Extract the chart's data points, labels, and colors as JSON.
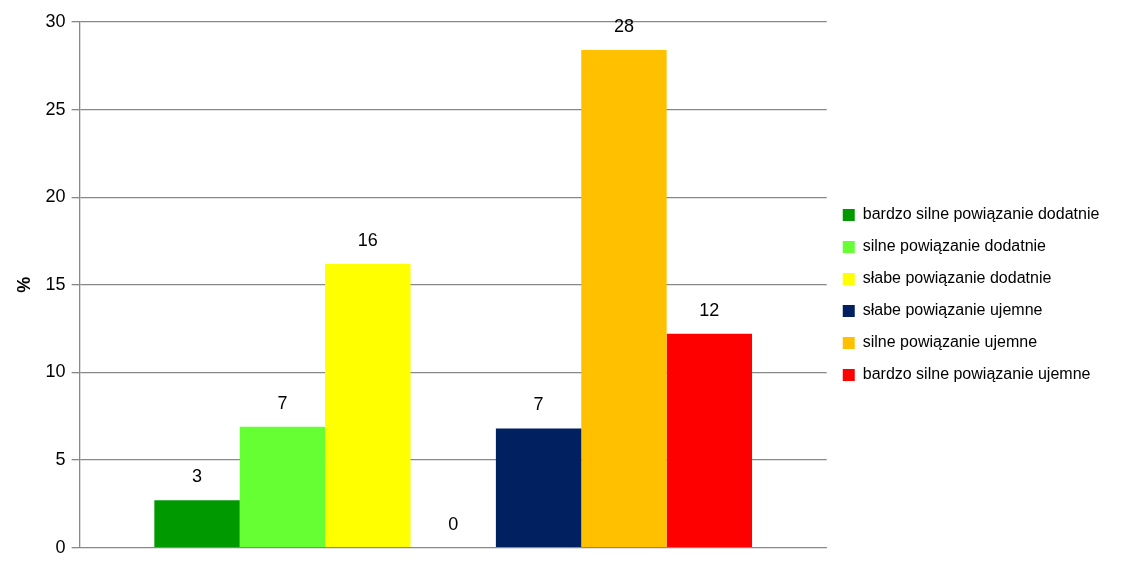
{
  "chart_data": {
    "type": "bar",
    "ylabel": "%",
    "categories": [
      null
    ],
    "series": [
      {
        "name": "bardzo silne powiązanie dodatnie",
        "color": "#009900",
        "values": [
          2.7
        ],
        "value_labels": [
          "3"
        ]
      },
      {
        "name": "silne powiązanie dodatnie",
        "color": "#66ff33",
        "values": [
          6.9
        ],
        "value_labels": [
          "7"
        ]
      },
      {
        "name": "słabe powiązanie dodatnie",
        "color": "#ffff00",
        "values": [
          16.2
        ],
        "value_labels": [
          "16"
        ]
      },
      {
        "color": "#ffffff",
        "values": [
          0
        ],
        "value_labels": [
          "0"
        ]
      },
      {
        "name": "słabe powiązanie ujemne",
        "color": "#002060",
        "values": [
          6.8
        ],
        "value_labels": [
          "7"
        ]
      },
      {
        "name": "silne powiązanie ujemne",
        "color": "#ffc000",
        "values": [
          28.4
        ],
        "value_labels": [
          "28"
        ]
      },
      {
        "name": "bardzo silne powiązanie ujemne",
        "color": "#ff0000",
        "values": [
          12.2
        ],
        "value_labels": [
          "12"
        ]
      }
    ],
    "ylim": [
      0,
      30
    ],
    "yticks": [
      0,
      5,
      10,
      15,
      20,
      25,
      30
    ],
    "grid": "y",
    "legend": "right"
  }
}
